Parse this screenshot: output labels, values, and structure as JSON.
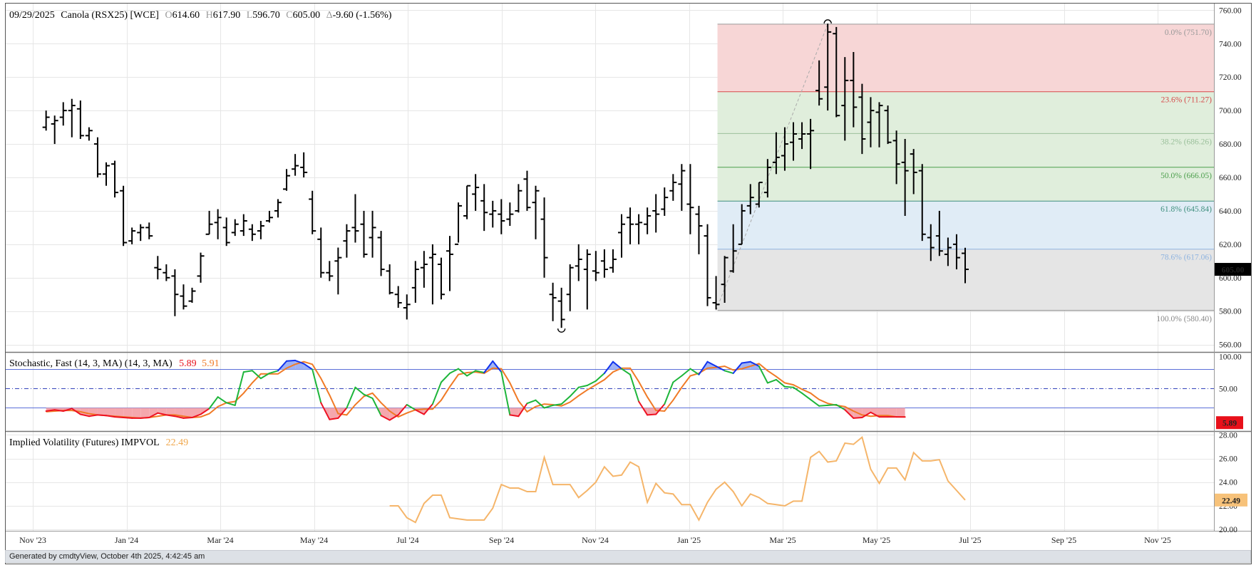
{
  "header": {
    "date": "09/29/2025",
    "symbol": "Canola (RSX25) [WCE]",
    "open_label": "O",
    "open": "614.60",
    "high_label": "H",
    "high": "617.90",
    "low_label": "L",
    "low": "596.70",
    "close_label": "C",
    "close": "605.00",
    "change_label": "Δ",
    "change": "-9.60 (-1.56%)"
  },
  "footer": {
    "text": "Generated by cmdtyView, October 4th 2025, 4:42:45 am"
  },
  "colors": {
    "stoch_k": "#1db53a",
    "stoch_d": "#f07a26",
    "overbought_fill": "#9fb2f5",
    "oversold_fill": "#f5a7ad",
    "overbought_line": "#1133ee",
    "oversold_line": "#ee1122",
    "impvol": "#f5b56a",
    "last_price_bg": "#000000",
    "stoch_badge_bg": "#e8101a",
    "impvol_badge_bg": "#f7c27a"
  },
  "chart_data": [
    {
      "type": "ohlc",
      "title": "Canola (RSX25) [WCE]",
      "x_ticks": [
        "Nov '23",
        "Jan '24",
        "Mar '24",
        "May '24",
        "Jul '24",
        "Sep '24",
        "Nov '24",
        "Jan '25",
        "Mar '25",
        "May '25",
        "Jul '25",
        "Sep '25",
        "Nov '25"
      ],
      "y_ticks": [
        "760.00",
        "740.00",
        "720.00",
        "700.00",
        "680.00",
        "660.00",
        "640.00",
        "620.00",
        "600.00",
        "580.00",
        "560.00"
      ],
      "ylim": [
        556,
        764
      ],
      "last_price": "605.00",
      "ohlc": [
        [
          -7,
          690,
          700,
          688,
          696
        ],
        [
          -6,
          692,
          697,
          680,
          694
        ],
        [
          -5,
          696,
          705,
          691,
          700
        ],
        [
          -4,
          700,
          707,
          684,
          703
        ],
        [
          -3,
          701,
          706,
          683,
          685
        ],
        [
          -2,
          685,
          690,
          682,
          688
        ],
        [
          -1,
          680,
          684,
          660,
          662
        ],
        [
          0,
          662,
          669,
          655,
          667
        ],
        [
          1,
          668,
          670,
          648,
          651
        ],
        [
          2,
          652,
          655,
          619,
          621
        ],
        [
          3,
          622,
          630,
          620,
          628
        ],
        [
          4,
          627,
          632,
          622,
          630
        ],
        [
          5,
          630,
          633,
          623,
          625
        ],
        [
          6,
          606,
          613,
          599,
          605
        ],
        [
          7,
          603,
          608,
          598,
          600
        ],
        [
          8,
          601,
          605,
          577,
          590
        ],
        [
          9,
          589,
          596,
          581,
          583
        ],
        [
          10,
          586,
          594,
          585,
          592
        ],
        [
          11,
          601,
          615,
          597,
          613
        ],
        [
          12,
          626,
          640,
          626,
          632
        ],
        [
          13,
          633,
          641,
          623,
          636
        ],
        [
          14,
          630,
          636,
          619,
          621
        ],
        [
          15,
          627,
          635,
          625,
          632
        ],
        [
          16,
          628,
          638,
          625,
          634
        ],
        [
          17,
          629,
          632,
          622,
          626
        ],
        [
          18,
          628,
          634,
          623,
          631
        ],
        [
          19,
          634,
          640,
          633,
          636
        ],
        [
          20,
          640,
          647,
          636,
          645
        ],
        [
          21,
          653,
          665,
          652,
          661
        ],
        [
          22,
          665,
          674,
          661,
          667
        ],
        [
          23,
          666,
          675,
          660,
          663
        ],
        [
          24,
          647,
          652,
          626,
          628
        ],
        [
          25,
          623,
          630,
          600,
          603
        ],
        [
          26,
          603,
          610,
          598,
          601
        ],
        [
          27,
          610,
          618,
          590,
          612
        ],
        [
          28,
          622,
          632,
          612,
          628
        ],
        [
          29,
          630,
          650,
          621,
          628
        ],
        [
          30,
          632,
          640,
          612,
          614
        ],
        [
          31,
          624,
          640,
          612,
          630
        ],
        [
          32,
          624,
          628,
          601,
          605
        ],
        [
          33,
          604,
          608,
          590,
          591
        ],
        [
          34,
          590,
          595,
          582,
          585
        ],
        [
          35,
          582,
          590,
          575,
          584
        ],
        [
          36,
          594,
          610,
          585,
          605
        ],
        [
          37,
          606,
          616,
          594,
          608
        ],
        [
          38,
          612,
          620,
          584,
          614
        ],
        [
          39,
          608,
          612,
          587,
          590
        ],
        [
          40,
          616,
          625,
          592,
          614
        ],
        [
          41,
          620,
          645,
          621,
          643
        ],
        [
          42,
          637,
          655,
          635,
          655
        ],
        [
          43,
          650,
          662,
          640,
          654
        ],
        [
          44,
          646,
          656,
          628,
          639
        ],
        [
          45,
          638,
          646,
          630,
          640
        ],
        [
          46,
          638,
          647,
          626,
          634
        ],
        [
          47,
          635,
          645,
          631,
          638
        ],
        [
          48,
          640,
          656,
          639,
          652
        ],
        [
          49,
          659,
          664,
          640,
          642
        ],
        [
          50,
          645,
          655,
          623,
          652
        ],
        [
          51,
          635,
          648,
          600,
          612
        ],
        [
          52,
          590,
          597,
          574,
          588
        ],
        [
          53,
          586,
          594,
          570,
          575
        ],
        [
          54,
          590,
          608,
          580,
          606
        ],
        [
          55,
          607,
          620,
          598,
          611
        ],
        [
          56,
          605,
          617,
          581,
          614
        ],
        [
          57,
          604,
          616,
          598,
          603
        ],
        [
          58,
          610,
          617,
          600,
          605
        ],
        [
          59,
          606,
          617,
          603,
          611
        ],
        [
          60,
          627,
          638,
          612,
          632
        ],
        [
          61,
          636,
          642,
          620,
          632
        ],
        [
          62,
          632,
          638,
          620,
          633
        ],
        [
          63,
          632,
          642,
          626,
          637
        ],
        [
          64,
          640,
          650,
          627,
          638
        ],
        [
          65,
          641,
          654,
          637,
          648
        ],
        [
          66,
          652,
          662,
          646,
          657
        ],
        [
          67,
          656,
          668,
          640,
          664
        ],
        [
          68,
          644,
          668,
          626,
          642
        ],
        [
          69,
          638,
          643,
          614,
          631
        ],
        [
          70,
          625,
          632,
          583,
          588
        ],
        [
          71,
          585,
          601,
          581,
          584
        ],
        [
          72,
          596,
          613,
          585,
          612
        ],
        [
          73,
          604,
          632,
          603,
          616
        ],
        [
          74,
          620,
          644,
          620,
          640
        ],
        [
          75,
          643,
          656,
          638,
          648
        ],
        [
          76,
          644,
          657,
          642,
          657
        ],
        [
          77,
          651,
          671,
          648,
          666
        ],
        [
          78,
          669,
          687,
          662,
          672
        ],
        [
          79,
          673,
          690,
          664,
          680
        ],
        [
          80,
          681,
          693,
          670,
          686
        ],
        [
          81,
          683,
          693,
          677,
          686
        ],
        [
          82,
          686,
          695,
          665,
          688
        ],
        [
          83,
          712,
          730,
          703,
          707
        ],
        [
          84,
          714,
          752,
          700,
          747
        ],
        [
          85,
          746,
          750,
          696,
          697
        ],
        [
          86,
          703,
          732,
          682,
          718
        ],
        [
          87,
          718,
          735,
          690,
          702
        ],
        [
          88,
          708,
          716,
          674,
          683
        ],
        [
          89,
          693,
          708,
          678,
          700
        ],
        [
          90,
          699,
          705,
          678,
          703
        ],
        [
          91,
          700,
          703,
          680,
          681
        ],
        [
          92,
          682,
          688,
          656,
          668
        ],
        [
          93,
          669,
          683,
          637,
          664
        ],
        [
          94,
          674,
          677,
          650,
          663
        ],
        [
          95,
          664,
          668,
          622,
          626
        ],
        [
          96,
          624,
          632,
          610,
          618
        ],
        [
          97,
          625,
          640,
          613,
          616
        ],
        [
          98,
          614,
          624,
          607,
          618
        ],
        [
          99,
          620,
          626,
          605,
          612
        ],
        [
          100,
          614.6,
          617.9,
          596.7,
          605.0
        ]
      ],
      "fibonacci": {
        "high": 751.7,
        "low": 580.4,
        "start_index": 71,
        "end_index": 84,
        "levels": [
          {
            "label": "0.0% (751.70)",
            "value": 751.7,
            "color": "#999999"
          },
          {
            "label": "23.6% (711.27)",
            "value": 711.27,
            "color": "#d64a4a"
          },
          {
            "label": "38.2% (686.26)",
            "value": 686.26,
            "color": "#9bc09b"
          },
          {
            "label": "50.0% (666.05)",
            "value": 666.05,
            "color": "#4c9f4c"
          },
          {
            "label": "61.8% (645.84)",
            "value": 645.84,
            "color": "#3f8f7e"
          },
          {
            "label": "78.6% (617.06)",
            "value": 617.06,
            "color": "#8fb4e0"
          },
          {
            "label": "100.0% (580.40)",
            "value": 580.4,
            "color": "#888888"
          }
        ],
        "zones": [
          {
            "from": 711.27,
            "to": 751.7,
            "color": "#f7d6d6"
          },
          {
            "from": 645.84,
            "to": 711.27,
            "color": "#e0eedc"
          },
          {
            "from": 617.06,
            "to": 645.84,
            "color": "#e0ecf6"
          },
          {
            "from": 580.4,
            "to": 617.06,
            "color": "#e5e5e5"
          }
        ]
      }
    },
    {
      "type": "line",
      "title": "Stochastic, Fast (14, 3, MA)  (14, 3, MA)",
      "y_ticks": [
        "100.00",
        "50.00"
      ],
      "ylim": [
        -15,
        105
      ],
      "overbought": 80,
      "oversold": 20,
      "mid": 50,
      "last_value": "5.89",
      "series": [
        {
          "name": "5.89",
          "values": [
            15,
            17,
            15,
            19,
            10,
            7,
            9,
            8,
            6,
            5,
            4,
            4,
            5,
            12,
            9,
            7,
            4,
            5,
            10,
            19,
            37,
            28,
            24,
            76,
            78,
            66,
            74,
            78,
            93,
            94,
            89,
            80,
            28,
            2,
            4,
            20,
            52,
            41,
            35,
            8,
            1,
            9,
            25,
            17,
            10,
            26,
            60,
            74,
            81,
            70,
            78,
            75,
            93,
            76,
            9,
            7,
            27,
            32,
            20,
            24,
            26,
            38,
            52,
            55,
            62,
            74,
            92,
            81,
            72,
            30,
            9,
            10,
            26,
            60,
            70,
            81,
            72,
            92,
            85,
            78,
            74,
            90,
            92,
            85,
            59,
            64,
            53,
            52,
            43,
            33,
            23,
            24,
            25,
            17,
            4,
            5,
            13,
            6,
            6,
            6,
            5.89
          ]
        },
        {
          "name": "5.91",
          "values": [
            14,
            15,
            16,
            16,
            14,
            11,
            9,
            8,
            7,
            6,
            5,
            4,
            5,
            7,
            9,
            9,
            7,
            5,
            6,
            11,
            22,
            28,
            30,
            43,
            59,
            73,
            73,
            73,
            82,
            88,
            92,
            88,
            66,
            40,
            11,
            9,
            25,
            38,
            43,
            28,
            15,
            6,
            12,
            17,
            18,
            18,
            32,
            53,
            72,
            75,
            76,
            74,
            82,
            81,
            59,
            31,
            14,
            22,
            26,
            25,
            23,
            29,
            39,
            48,
            56,
            64,
            76,
            82,
            82,
            61,
            37,
            16,
            15,
            32,
            52,
            70,
            74,
            82,
            83,
            85,
            79,
            81,
            85,
            89,
            78,
            69,
            59,
            56,
            49,
            43,
            33,
            27,
            24,
            22,
            15,
            9,
            7,
            8,
            8,
            6,
            5.91
          ]
        }
      ]
    },
    {
      "type": "line",
      "title": "Implied Volatility (Futures)  IMPVOL",
      "y_ticks": [
        "28.00",
        "26.00",
        "24.00",
        "22.00",
        "20.00"
      ],
      "ylim": [
        19.95,
        28.2
      ],
      "last_value": "22.49",
      "series": [
        {
          "name": "22.49",
          "x_start": 33,
          "values": [
            22.0,
            22.0,
            21.0,
            20.6,
            22.2,
            22.9,
            22.9,
            21.0,
            20.9,
            20.8,
            20.8,
            20.8,
            21.8,
            23.8,
            23.5,
            23.5,
            23.2,
            23.2,
            26.1,
            23.8,
            23.8,
            23.8,
            22.7,
            23.3,
            24.0,
            25.3,
            24.5,
            24.6,
            25.7,
            25.3,
            22.3,
            23.9,
            23.1,
            23.0,
            22.1,
            22.1,
            20.8,
            22.3,
            23.4,
            24.0,
            23.2,
            22.0,
            23.0,
            22.7,
            22.2,
            22.1,
            22.0,
            22.4,
            22.4,
            26.1,
            26.6,
            25.7,
            25.8,
            27.3,
            27.2,
            27.8,
            25.1,
            23.9,
            25.2,
            25.2,
            24.2,
            26.5,
            25.8,
            25.8,
            25.9,
            24.1,
            23.3,
            22.49
          ]
        }
      ]
    }
  ]
}
